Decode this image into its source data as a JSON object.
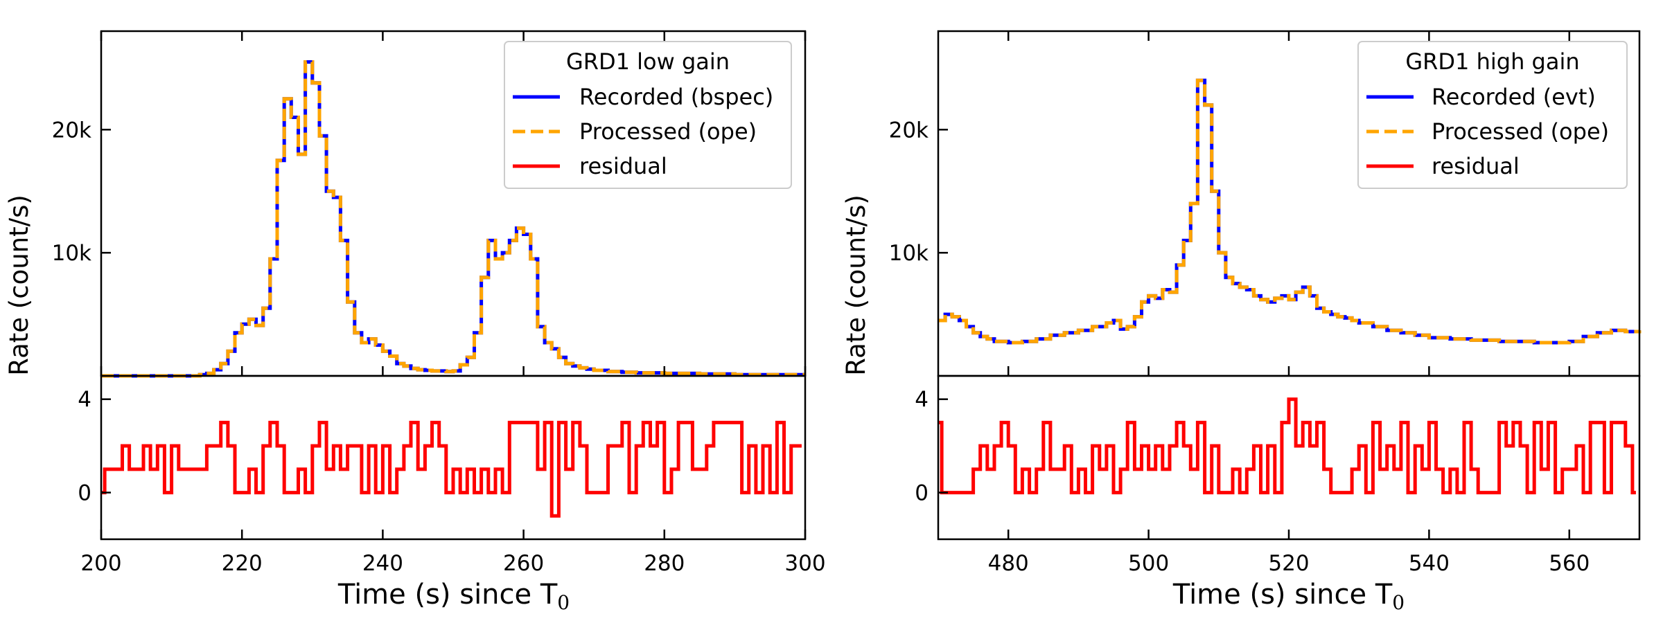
{
  "chart_data": [
    {
      "type": "line",
      "drawstyle": "steps",
      "legend_title": "GRD1 low gain",
      "legend_position": "top-right",
      "ylabel": "Rate (count/s)",
      "xlabel_main": "Time (s) since T",
      "xlabel_sub": "0",
      "xlim": [
        200,
        300
      ],
      "xticks": [
        "200",
        "220",
        "240",
        "260",
        "280",
        "300"
      ],
      "top": {
        "ylim": [
          0,
          28000
        ],
        "yticks": [
          {
            "value": 10000,
            "label": "10k"
          },
          {
            "value": 20000,
            "label": "20k"
          }
        ],
        "x": [
          200,
          214,
          215,
          216,
          217,
          218,
          219,
          220,
          221,
          222,
          223,
          224,
          225,
          226,
          227,
          228,
          229,
          230,
          231,
          232,
          233,
          234,
          235,
          236,
          237,
          238,
          239,
          240,
          241,
          242,
          243,
          244,
          245,
          246,
          247,
          248,
          249,
          250,
          251,
          252,
          253,
          254,
          255,
          256,
          257,
          258,
          259,
          260,
          261,
          262,
          263,
          264,
          265,
          266,
          267,
          268,
          269,
          270,
          272,
          274,
          276,
          280,
          285,
          290,
          295,
          300
        ],
        "series": [
          {
            "name": "Recorded (bspec)",
            "color": "#0000ff",
            "dash": "solid",
            "values": [
              0,
              100,
              200,
              500,
              1000,
              2000,
              3500,
              4200,
              4600,
              4100,
              5500,
              9500,
              17500,
              22500,
              21000,
              18000,
              25500,
              23800,
              19500,
              15000,
              14500,
              11000,
              6000,
              3500,
              2700,
              3000,
              2500,
              2000,
              1600,
              1000,
              800,
              600,
              500,
              450,
              400,
              400,
              350,
              400,
              900,
              1500,
              3500,
              8000,
              11000,
              9500,
              10000,
              11000,
              12000,
              11500,
              9500,
              4000,
              2700,
              2200,
              1500,
              1000,
              800,
              650,
              550,
              450,
              350,
              300,
              250,
              200,
              150,
              100,
              100,
              100
            ]
          },
          {
            "name": "Processed (ope)",
            "color": "#ffa500",
            "dash": "dashed",
            "values": [
              0,
              100,
              200,
              500,
              1000,
              2000,
              3500,
              4200,
              4600,
              4100,
              5500,
              9500,
              17500,
              22500,
              21000,
              18000,
              25500,
              23800,
              19500,
              15000,
              14500,
              11000,
              6000,
              3500,
              2700,
              3000,
              2500,
              2000,
              1600,
              1000,
              800,
              600,
              500,
              450,
              400,
              400,
              350,
              400,
              900,
              1500,
              3500,
              8000,
              11000,
              9500,
              10000,
              11000,
              12000,
              11500,
              9500,
              4000,
              2700,
              2200,
              1500,
              1000,
              800,
              650,
              550,
              450,
              350,
              300,
              250,
              200,
              150,
              100,
              100,
              100
            ]
          }
        ]
      },
      "bottom": {
        "ylim": [
          -2,
          5
        ],
        "yticks": [
          {
            "value": 0,
            "label": "0"
          },
          {
            "value": 4,
            "label": "4"
          }
        ],
        "series": [
          {
            "name": "residual",
            "color": "#ff0000",
            "dash": "solid",
            "x": [
              200,
              200.5,
              201,
              203,
              204,
              206,
              207,
              208,
              209,
              210,
              211,
              213,
              215,
              216,
              217,
              218,
              219,
              220,
              221,
              222,
              223,
              224,
              225,
              226,
              227,
              228,
              229,
              230,
              231,
              232,
              233,
              234,
              235,
              236,
              237,
              238,
              239,
              240,
              241,
              242,
              243,
              244,
              245,
              246,
              247,
              248,
              249,
              250,
              251,
              252,
              253,
              254,
              255,
              256,
              257,
              258,
              259,
              260,
              261,
              262,
              263,
              264,
              265,
              266,
              267,
              268,
              269,
              270,
              271,
              272,
              273,
              274,
              275,
              276,
              277,
              278,
              279,
              280,
              281,
              282,
              283,
              284,
              285,
              286,
              287,
              288,
              289,
              290,
              291,
              292,
              293,
              294,
              295,
              296,
              297,
              298,
              299
            ],
            "values": [
              0,
              1,
              1,
              2,
              1,
              2,
              1,
              2,
              0,
              2,
              1,
              1,
              2,
              2,
              3,
              2,
              0,
              0,
              1,
              0,
              2,
              3,
              2,
              0,
              0,
              1,
              0,
              2,
              3,
              1,
              2,
              1,
              2,
              2,
              0,
              2,
              0,
              2,
              0,
              1,
              2,
              3,
              1,
              2,
              3,
              2,
              0,
              1,
              0,
              1,
              0,
              1,
              0,
              1,
              0,
              3,
              3,
              3,
              3,
              1,
              3,
              -1,
              3,
              1,
              3,
              2,
              0,
              0,
              0,
              2,
              2,
              3,
              0,
              2,
              3,
              2,
              3,
              0,
              1,
              3,
              3,
              1,
              1,
              2,
              3,
              3,
              3,
              3,
              0,
              2,
              0,
              2,
              0,
              3,
              0,
              2,
              2
            ]
          }
        ]
      }
    },
    {
      "type": "line",
      "drawstyle": "steps",
      "legend_title": "GRD1 high gain",
      "legend_position": "top-right",
      "ylabel": "Rate (count/s)",
      "xlabel_main": "Time (s) since T",
      "xlabel_sub": "0",
      "xlim": [
        470,
        570
      ],
      "xticks": [
        "480",
        "500",
        "520",
        "540",
        "560"
      ],
      "top": {
        "ylim": [
          0,
          28000
        ],
        "yticks": [
          {
            "value": 10000,
            "label": "10k"
          },
          {
            "value": 20000,
            "label": "20k"
          }
        ],
        "x": [
          470,
          471,
          472,
          473,
          474,
          475,
          476,
          477,
          478,
          480,
          482,
          484,
          486,
          488,
          490,
          492,
          494,
          495,
          496,
          497,
          498,
          499,
          500,
          501,
          502,
          503,
          504,
          505,
          506,
          507,
          508,
          509,
          510,
          511,
          512,
          513,
          514,
          515,
          516,
          517,
          518,
          519,
          520,
          521,
          522,
          523,
          524,
          525,
          526,
          527,
          528,
          529,
          530,
          532,
          534,
          536,
          538,
          540,
          543,
          546,
          550,
          555,
          560,
          562,
          564,
          566,
          568,
          570
        ],
        "series": [
          {
            "name": "Recorded (evt)",
            "color": "#0000ff",
            "dash": "solid",
            "values": [
              4500,
              5000,
              4800,
              4500,
              4000,
              3500,
              3200,
              3000,
              2800,
              2700,
              2800,
              3000,
              3300,
              3500,
              3700,
              4000,
              4300,
              4500,
              3800,
              4000,
              4800,
              6000,
              6500,
              6300,
              7000,
              6800,
              9000,
              11000,
              14000,
              24000,
              22000,
              15000,
              10000,
              8000,
              7500,
              7200,
              7000,
              6500,
              6200,
              6000,
              6300,
              6500,
              6200,
              6800,
              7200,
              6500,
              5500,
              5200,
              5000,
              4800,
              4700,
              4500,
              4300,
              4000,
              3700,
              3500,
              3300,
              3100,
              3000,
              2900,
              2800,
              2700,
              2800,
              3200,
              3500,
              3700,
              3600,
              3700
            ]
          },
          {
            "name": "Processed (ope)",
            "color": "#ffa500",
            "dash": "dashed",
            "values": [
              4500,
              5000,
              4800,
              4500,
              4000,
              3500,
              3200,
              3000,
              2800,
              2700,
              2800,
              3000,
              3300,
              3500,
              3700,
              4000,
              4300,
              4500,
              3800,
              4000,
              4800,
              6000,
              6500,
              6300,
              7000,
              6800,
              9000,
              11000,
              14000,
              24000,
              22000,
              15000,
              10000,
              8000,
              7500,
              7200,
              7000,
              6500,
              6200,
              6000,
              6300,
              6500,
              6200,
              6800,
              7200,
              6500,
              5500,
              5200,
              5000,
              4800,
              4700,
              4500,
              4300,
              4000,
              3700,
              3500,
              3300,
              3100,
              3000,
              2900,
              2800,
              2700,
              2800,
              3200,
              3500,
              3700,
              3600,
              3700
            ]
          }
        ]
      },
      "bottom": {
        "ylim": [
          -2,
          5
        ],
        "yticks": [
          {
            "value": 0,
            "label": "0"
          },
          {
            "value": 4,
            "label": "4"
          }
        ],
        "series": [
          {
            "name": "residual",
            "color": "#ff0000",
            "dash": "solid",
            "x": [
              470,
              470.5,
              474,
              475,
              476,
              477,
              478,
              479,
              480,
              481,
              482,
              483,
              484,
              485,
              486,
              487,
              488,
              489,
              490,
              491,
              492,
              493,
              494,
              495,
              496,
              497,
              498,
              499,
              500,
              501,
              502,
              503,
              504,
              505,
              506,
              507,
              508,
              509,
              510,
              511,
              512,
              513,
              514,
              515,
              516,
              517,
              518,
              519,
              520,
              521,
              522,
              523,
              524,
              525,
              526,
              527,
              528,
              529,
              530,
              531,
              532,
              533,
              534,
              535,
              536,
              537,
              538,
              539,
              540,
              541,
              542,
              543,
              544,
              545,
              546,
              547,
              548,
              549,
              550,
              551,
              552,
              553,
              554,
              555,
              556,
              557,
              558,
              559,
              560,
              561,
              562,
              563,
              564,
              565,
              566,
              567,
              568,
              569
            ],
            "values": [
              3,
              0,
              0,
              1,
              2,
              1,
              2,
              3,
              2,
              0,
              1,
              0,
              1,
              3,
              1,
              1,
              2,
              0,
              1,
              0,
              2,
              1,
              2,
              0,
              1,
              3,
              1,
              2,
              1,
              2,
              1,
              2,
              3,
              2,
              1,
              3,
              0,
              2,
              0,
              0,
              1,
              0,
              1,
              2,
              0,
              2,
              0,
              3,
              4,
              2,
              3,
              2,
              3,
              1,
              0,
              0,
              0,
              1,
              2,
              0,
              3,
              1,
              2,
              1,
              3,
              0,
              2,
              1,
              3,
              1,
              0,
              1,
              0,
              3,
              1,
              0,
              0,
              0,
              3,
              2,
              3,
              2,
              0,
              3,
              1,
              3,
              0,
              1,
              1,
              2,
              0,
              3,
              3,
              0,
              3,
              3,
              2,
              0
            ]
          }
        ]
      }
    }
  ]
}
